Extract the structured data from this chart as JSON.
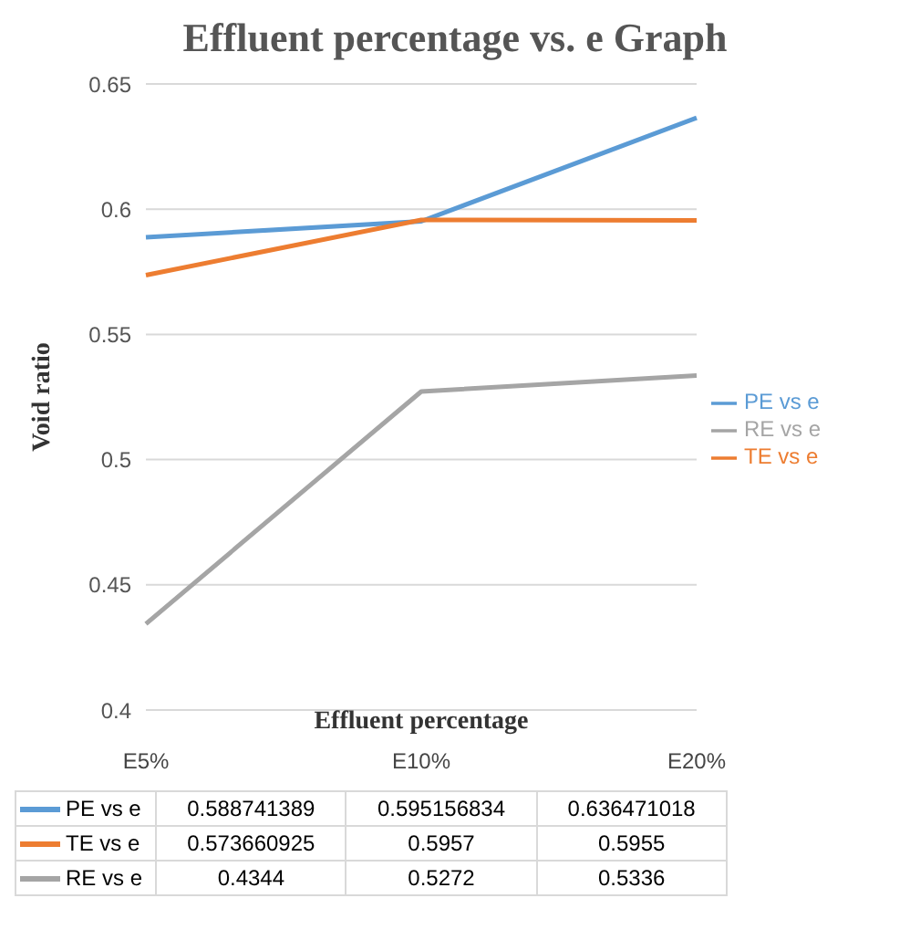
{
  "chart_data": {
    "type": "line",
    "title": "Effluent percentage vs. e Graph",
    "xlabel": "Effluent percentage",
    "ylabel": "Void ratio",
    "categories": [
      "E5%",
      "E10%",
      "E20%"
    ],
    "series": [
      {
        "name": "PE vs e",
        "color": "#5b9bd5",
        "values": [
          0.588741389,
          0.595156834,
          0.636471018
        ]
      },
      {
        "name": "TE vs e",
        "color": "#ed7d31",
        "values": [
          0.573660925,
          0.5957,
          0.5955
        ]
      },
      {
        "name": "RE vs e",
        "color": "#a5a5a5",
        "values": [
          0.4344,
          0.5272,
          0.5336
        ]
      }
    ],
    "ylim": [
      0.4,
      0.65
    ],
    "yticks": [
      0.4,
      0.45,
      0.5,
      0.55,
      0.6,
      0.65
    ],
    "grid": "y",
    "legend": "right",
    "marker": "none",
    "line_style": "solid",
    "data_labels": true
  }
}
